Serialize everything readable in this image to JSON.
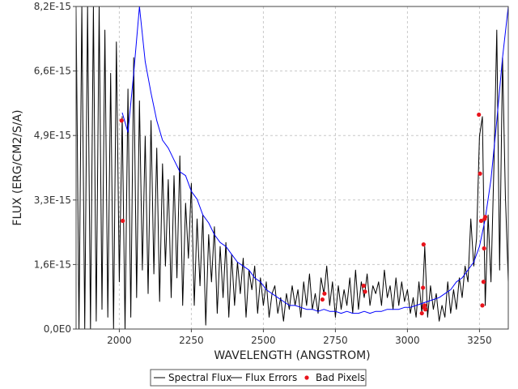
{
  "chart_data": {
    "type": "line",
    "title": "",
    "xlabel": "WAVELENGTH (ANGSTROM)",
    "ylabel": "FLUX (ERG/CM2/S/A)",
    "xlim": [
      1850,
      3350
    ],
    "ylim": [
      0,
      8.2e-15
    ],
    "x_ticks": [
      2000,
      2250,
      2500,
      2750,
      3000,
      3250
    ],
    "x_tick_labels": [
      "2000",
      "2250",
      "2500",
      "2750",
      "3000",
      "3250"
    ],
    "y_ticks": [
      0,
      1.64e-15,
      3.28e-15,
      4.92e-15,
      6.56e-15,
      8.2e-15
    ],
    "y_tick_labels": [
      "0,0E0",
      "1,6E-15",
      "3,3E-15",
      "4,9E-15",
      "6,6E-15",
      "8,2E-15"
    ],
    "grid": true,
    "legend_position": "bottom-center",
    "series": [
      {
        "name": "Spectral Flux",
        "color": "#000000",
        "style": "line",
        "x": [
          1850,
          1860,
          1870,
          1880,
          1890,
          1900,
          1910,
          1920,
          1930,
          1940,
          1950,
          1960,
          1970,
          1980,
          1990,
          2000,
          2010,
          2020,
          2030,
          2040,
          2050,
          2060,
          2070,
          2080,
          2090,
          2100,
          2110,
          2120,
          2130,
          2140,
          2150,
          2160,
          2170,
          2180,
          2190,
          2200,
          2210,
          2220,
          2230,
          2240,
          2250,
          2260,
          2270,
          2280,
          2290,
          2300,
          2310,
          2320,
          2330,
          2340,
          2350,
          2360,
          2370,
          2380,
          2390,
          2400,
          2410,
          2420,
          2430,
          2440,
          2450,
          2460,
          2470,
          2480,
          2490,
          2500,
          2510,
          2520,
          2530,
          2540,
          2550,
          2560,
          2570,
          2580,
          2590,
          2600,
          2610,
          2620,
          2630,
          2640,
          2650,
          2660,
          2670,
          2680,
          2690,
          2700,
          2710,
          2720,
          2730,
          2740,
          2750,
          2760,
          2770,
          2780,
          2790,
          2800,
          2810,
          2820,
          2830,
          2840,
          2850,
          2860,
          2870,
          2880,
          2890,
          2900,
          2910,
          2920,
          2930,
          2940,
          2950,
          2960,
          2970,
          2980,
          2990,
          3000,
          3010,
          3020,
          3030,
          3040,
          3050,
          3060,
          3070,
          3080,
          3090,
          3100,
          3110,
          3120,
          3130,
          3140,
          3150,
          3160,
          3170,
          3180,
          3190,
          3200,
          3210,
          3220,
          3230,
          3240,
          3250,
          3260,
          3270,
          3280,
          3290,
          3300,
          3310,
          3320,
          3330,
          3340,
          3350
        ],
        "y": [
          8.2e-15,
          0.0,
          8.2e-15,
          0.0,
          8.2e-15,
          0.0,
          8.2e-15,
          2e-16,
          8.2e-15,
          5e-16,
          7.6e-15,
          3e-16,
          6.5e-15,
          0.0,
          7.3e-15,
          1.2e-15,
          5.4e-15,
          0.0,
          6.1e-15,
          3e-16,
          6.9e-15,
          8e-16,
          5.8e-15,
          1.5e-15,
          4.9e-15,
          9e-16,
          5.3e-15,
          1.4e-15,
          4.6e-15,
          7e-16,
          4.2e-15,
          1.6e-15,
          3.8e-15,
          8e-16,
          3.9e-15,
          1.3e-15,
          4.4e-15,
          6e-16,
          3.2e-15,
          1.8e-15,
          3.7e-15,
          6e-16,
          2.8e-15,
          1.1e-15,
          2.9e-15,
          1e-16,
          2.4e-15,
          1.2e-15,
          2.6e-15,
          4e-16,
          2.1e-15,
          8e-16,
          2.2e-15,
          3e-16,
          1.9e-15,
          6e-16,
          1.7e-15,
          9e-16,
          1.8e-15,
          3e-16,
          1.5e-15,
          1e-15,
          1.6e-15,
          4e-16,
          1.3e-15,
          6e-16,
          1.2e-15,
          3e-16,
          9e-16,
          1.1e-15,
          4e-16,
          8e-16,
          2e-16,
          9e-16,
          5e-16,
          1.1e-15,
          6e-16,
          1e-15,
          3e-16,
          1.2e-15,
          6e-16,
          1.4e-15,
          5e-16,
          9e-16,
          4e-16,
          1.3e-15,
          9e-16,
          1.6e-15,
          6e-16,
          1.2e-15,
          3e-16,
          1.1e-15,
          5e-16,
          1e-15,
          6e-16,
          1.3e-15,
          4e-16,
          1.5e-15,
          5e-16,
          1.2e-15,
          8e-16,
          1.4e-15,
          6e-16,
          1.1e-15,
          9e-16,
          1.2e-15,
          6e-16,
          1.5e-15,
          8e-16,
          1.1e-15,
          5e-16,
          1.3e-15,
          6e-16,
          1.2e-15,
          7e-16,
          1e-15,
          4e-16,
          8e-16,
          3e-16,
          1.2e-15,
          4e-16,
          2.1e-15,
          3e-16,
          1.1e-15,
          5e-16,
          9e-16,
          2e-16,
          6e-16,
          3e-16,
          1.2e-15,
          4e-16,
          1e-15,
          5e-16,
          1.3e-15,
          8e-16,
          1.6e-15,
          1.2e-15,
          2.8e-15,
          1.6e-15,
          2.3e-15,
          4.9e-15,
          5.4e-15,
          6e-16,
          2.9e-15,
          1.2e-15,
          4.1e-15,
          7.6e-15,
          1.5e-15,
          6.9e-15,
          3.4e-15,
          1.2e-15
        ]
      },
      {
        "name": "Flux Errors",
        "color": "#0000ff",
        "style": "line",
        "x": [
          2010,
          2030,
          2050,
          2070,
          2090,
          2110,
          2130,
          2150,
          2170,
          2190,
          2210,
          2230,
          2250,
          2270,
          2290,
          2310,
          2330,
          2350,
          2370,
          2390,
          2410,
          2430,
          2450,
          2470,
          2490,
          2510,
          2530,
          2550,
          2570,
          2590,
          2610,
          2630,
          2650,
          2670,
          2690,
          2710,
          2730,
          2750,
          2770,
          2790,
          2810,
          2830,
          2850,
          2870,
          2890,
          2910,
          2930,
          2950,
          2970,
          2990,
          3010,
          3030,
          3050,
          3070,
          3090,
          3110,
          3130,
          3150,
          3170,
          3190,
          3210,
          3230,
          3250,
          3270,
          3290,
          3310,
          3330,
          3350
        ],
        "y": [
          5.5e-15,
          5e-15,
          6.5e-15,
          8.2e-15,
          6.8e-15,
          6e-15,
          5.3e-15,
          4.8e-15,
          4.6e-15,
          4.3e-15,
          4e-15,
          3.9e-15,
          3.5e-15,
          3.3e-15,
          2.9e-15,
          2.7e-15,
          2.4e-15,
          2.2e-15,
          2.1e-15,
          1.9e-15,
          1.7e-15,
          1.6e-15,
          1.5e-15,
          1.3e-15,
          1.2e-15,
          1e-15,
          9e-16,
          8e-16,
          7e-16,
          6e-16,
          6e-16,
          5.5e-16,
          5e-16,
          5e-16,
          4.5e-16,
          5e-16,
          4.5e-16,
          4.5e-16,
          4e-16,
          4.5e-16,
          4e-16,
          4e-16,
          4.5e-16,
          4e-16,
          4.5e-16,
          4.5e-16,
          5e-16,
          5e-16,
          5e-16,
          5.5e-16,
          5.5e-16,
          6e-16,
          6.5e-16,
          7e-16,
          7.5e-16,
          8e-16,
          9e-16,
          1e-15,
          1.2e-15,
          1.3e-15,
          1.5e-15,
          1.7e-15,
          2.1e-15,
          2.8e-15,
          3.8e-15,
          5.3e-15,
          6.9e-15,
          8.2e-15
        ]
      },
      {
        "name": "Bad Pixels",
        "color": "#e8141c",
        "style": "points",
        "x": [
          2008,
          2012,
          2705,
          2712,
          2848,
          2853,
          3050,
          3054,
          3056,
          3058,
          3060,
          3062,
          3248,
          3252,
          3256,
          3260,
          3264,
          3266,
          3268,
          3270
        ],
        "y": [
          5.3e-15,
          2.75e-15,
          7.5e-16,
          9e-16,
          1.1e-15,
          9.5e-16,
          4e-16,
          1.05e-15,
          2.15e-15,
          5.5e-16,
          6e-16,
          5e-16,
          5.45e-15,
          3.95e-15,
          2.75e-15,
          6e-16,
          1.2e-15,
          2.05e-15,
          2.8e-15,
          2.85e-15
        ]
      }
    ]
  }
}
